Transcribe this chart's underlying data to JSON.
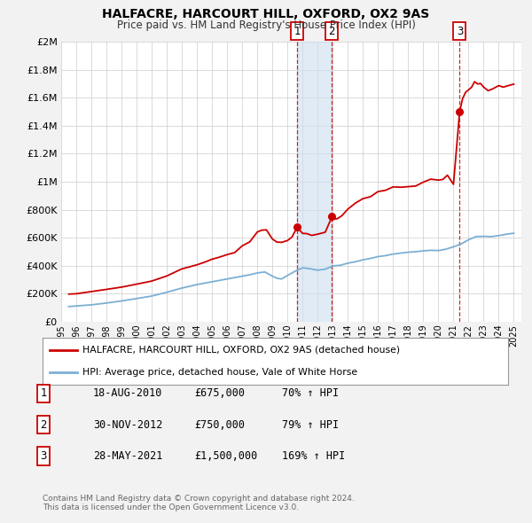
{
  "title": "HALFACRE, HARCOURT HILL, OXFORD, OX2 9AS",
  "subtitle": "Price paid vs. HM Land Registry's House Price Index (HPI)",
  "background_color": "#f2f2f2",
  "plot_background": "#ffffff",
  "red_line_color": "#cc0000",
  "blue_line_color": "#7bafd4",
  "sale_marker_color": "#cc0000",
  "vline_color": "#cc0000",
  "vshade_color": "#ccdff0",
  "ylim": [
    0,
    2000000
  ],
  "yticks": [
    0,
    200000,
    400000,
    600000,
    800000,
    1000000,
    1200000,
    1400000,
    1600000,
    1800000,
    2000000
  ],
  "ytick_labels": [
    "£0",
    "£200K",
    "£400K",
    "£600K",
    "£800K",
    "£1M",
    "£1.2M",
    "£1.4M",
    "£1.6M",
    "£1.8M",
    "£2M"
  ],
  "xlim_start": 1995.0,
  "xlim_end": 2025.5,
  "xtick_years": [
    1995,
    1996,
    1997,
    1998,
    1999,
    2000,
    2001,
    2002,
    2003,
    2004,
    2005,
    2006,
    2007,
    2008,
    2009,
    2010,
    2011,
    2012,
    2013,
    2014,
    2015,
    2016,
    2017,
    2018,
    2019,
    2020,
    2021,
    2022,
    2023,
    2024,
    2025
  ],
  "legend_label_red": "HALFACRE, HARCOURT HILL, OXFORD, OX2 9AS (detached house)",
  "legend_label_blue": "HPI: Average price, detached house, Vale of White Horse",
  "sale_events": [
    {
      "num": 1,
      "date_label": "18-AUG-2010",
      "x": 2010.63,
      "price": 675000,
      "price_label": "£675,000",
      "pct_label": "70% ↑ HPI"
    },
    {
      "num": 2,
      "date_label": "30-NOV-2012",
      "x": 2012.92,
      "price": 750000,
      "price_label": "£750,000",
      "pct_label": "79% ↑ HPI"
    },
    {
      "num": 3,
      "date_label": "28-MAY-2021",
      "x": 2021.41,
      "price": 1500000,
      "price_label": "£1,500,000",
      "pct_label": "169% ↑ HPI"
    }
  ],
  "footer_line1": "Contains HM Land Registry data © Crown copyright and database right 2024.",
  "footer_line2": "This data is licensed under the Open Government Licence v3.0.",
  "red_anchors": [
    [
      1995.5,
      195000
    ],
    [
      1996,
      200000
    ],
    [
      1997,
      215000
    ],
    [
      1998,
      230000
    ],
    [
      1999,
      248000
    ],
    [
      2000,
      268000
    ],
    [
      2001,
      290000
    ],
    [
      2002,
      330000
    ],
    [
      2003,
      375000
    ],
    [
      2003.5,
      390000
    ],
    [
      2004,
      408000
    ],
    [
      2004.5,
      425000
    ],
    [
      2005,
      445000
    ],
    [
      2005.5,
      462000
    ],
    [
      2006,
      480000
    ],
    [
      2006.5,
      498000
    ],
    [
      2007,
      540000
    ],
    [
      2007.5,
      570000
    ],
    [
      2008.0,
      640000
    ],
    [
      2008.3,
      660000
    ],
    [
      2008.6,
      650000
    ],
    [
      2009.0,
      590000
    ],
    [
      2009.3,
      570000
    ],
    [
      2009.6,
      560000
    ],
    [
      2010.0,
      580000
    ],
    [
      2010.3,
      610000
    ],
    [
      2010.63,
      675000
    ],
    [
      2011.0,
      640000
    ],
    [
      2011.3,
      625000
    ],
    [
      2011.6,
      618000
    ],
    [
      2012.0,
      628000
    ],
    [
      2012.5,
      635000
    ],
    [
      2012.92,
      750000
    ],
    [
      2013.0,
      730000
    ],
    [
      2013.3,
      745000
    ],
    [
      2013.6,
      760000
    ],
    [
      2014.0,
      810000
    ],
    [
      2014.5,
      840000
    ],
    [
      2015.0,
      870000
    ],
    [
      2015.5,
      895000
    ],
    [
      2016.0,
      925000
    ],
    [
      2016.5,
      940000
    ],
    [
      2017.0,
      960000
    ],
    [
      2017.5,
      965000
    ],
    [
      2018.0,
      975000
    ],
    [
      2018.5,
      980000
    ],
    [
      2019.0,
      995000
    ],
    [
      2019.5,
      1005000
    ],
    [
      2020.0,
      1010000
    ],
    [
      2020.3,
      1020000
    ],
    [
      2020.6,
      1035000
    ],
    [
      2021.0,
      980000
    ],
    [
      2021.41,
      1500000
    ],
    [
      2021.6,
      1590000
    ],
    [
      2021.8,
      1640000
    ],
    [
      2022.0,
      1660000
    ],
    [
      2022.2,
      1690000
    ],
    [
      2022.4,
      1710000
    ],
    [
      2022.6,
      1700000
    ],
    [
      2022.8,
      1690000
    ],
    [
      2023.0,
      1680000
    ],
    [
      2023.3,
      1670000
    ],
    [
      2023.6,
      1665000
    ],
    [
      2024.0,
      1670000
    ],
    [
      2024.3,
      1680000
    ],
    [
      2024.6,
      1695000
    ],
    [
      2025.0,
      1710000
    ]
  ],
  "blue_anchors": [
    [
      1995.5,
      108000
    ],
    [
      1996,
      112000
    ],
    [
      1997,
      120000
    ],
    [
      1998,
      133000
    ],
    [
      1999,
      148000
    ],
    [
      2000,
      165000
    ],
    [
      2001,
      183000
    ],
    [
      2002,
      210000
    ],
    [
      2003,
      240000
    ],
    [
      2004,
      265000
    ],
    [
      2005,
      285000
    ],
    [
      2006,
      305000
    ],
    [
      2007,
      325000
    ],
    [
      2007.5,
      335000
    ],
    [
      2008.0,
      348000
    ],
    [
      2008.5,
      355000
    ],
    [
      2009.0,
      325000
    ],
    [
      2009.3,
      310000
    ],
    [
      2009.6,
      305000
    ],
    [
      2010.0,
      330000
    ],
    [
      2010.5,
      360000
    ],
    [
      2011.0,
      385000
    ],
    [
      2011.5,
      378000
    ],
    [
      2012.0,
      368000
    ],
    [
      2012.5,
      375000
    ],
    [
      2013.0,
      398000
    ],
    [
      2013.5,
      403000
    ],
    [
      2014.0,
      418000
    ],
    [
      2014.5,
      428000
    ],
    [
      2015.0,
      442000
    ],
    [
      2015.5,
      452000
    ],
    [
      2016.0,
      465000
    ],
    [
      2016.5,
      472000
    ],
    [
      2017.0,
      483000
    ],
    [
      2017.5,
      490000
    ],
    [
      2018.0,
      496000
    ],
    [
      2018.5,
      500000
    ],
    [
      2019.0,
      506000
    ],
    [
      2019.5,
      510000
    ],
    [
      2020.0,
      508000
    ],
    [
      2020.5,
      518000
    ],
    [
      2021.0,
      535000
    ],
    [
      2021.5,
      555000
    ],
    [
      2022.0,
      585000
    ],
    [
      2022.5,
      608000
    ],
    [
      2023.0,
      610000
    ],
    [
      2023.5,
      608000
    ],
    [
      2024.0,
      615000
    ],
    [
      2024.5,
      625000
    ],
    [
      2025.0,
      632000
    ]
  ]
}
